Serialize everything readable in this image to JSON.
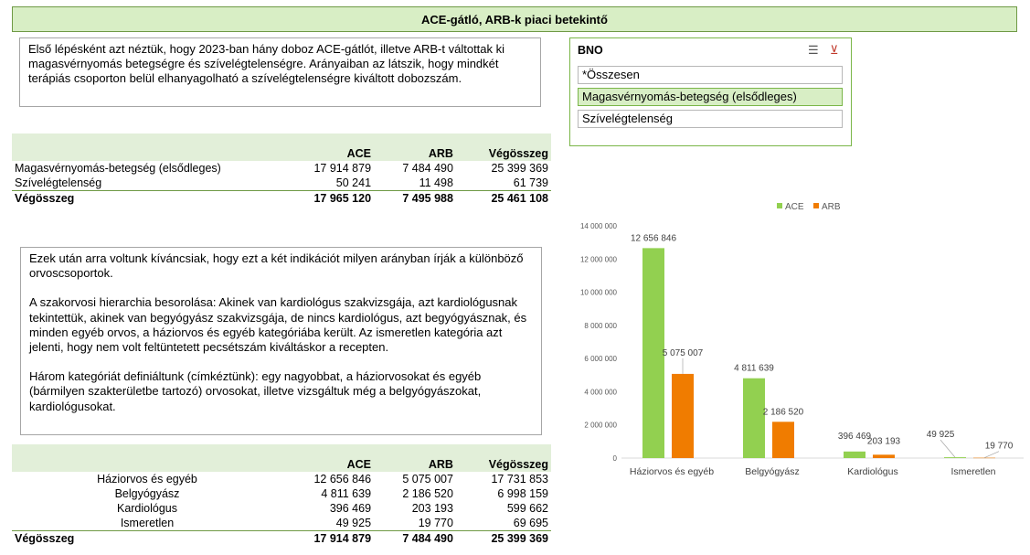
{
  "title": "ACE-gátló, ARB-k piaci betekintő",
  "note1": "Első lépésként azt néztük, hogy 2023-ban hány doboz ACE-gátlót, illetve ARB-t váltottak ki magasvérnyomás betegségre és szívelégtelenségre. Arányaiban az látszik, hogy mindkét terápiás csoporton belül elhanyagolható a szívelégtelenségre kiváltott dobozszám.",
  "note2": {
    "p1": "Ezek után arra voltunk kíváncsiak, hogy ezt a két indikációt milyen arányban írják a különböző orvoscsoportok.",
    "p2": "A szakorvosi hierarchia besorolása: Akinek van kardiológus szakvizsgája, azt kardiológusnak tekintettük, akinek van begyógyász szakvizsgája, de nincs kardiológus, azt begyógyásznak, és minden egyéb orvos, a háziorvos és egyéb kategóriába került. Az ismeretlen kategória azt jelenti, hogy nem volt feltüntetett pecsétszám kiváltáskor a recepten.",
    "p3": "Három kategóriát definiáltunk (címkéztünk): egy nagyobbat, a háziorvosokat és egyéb (bármilyen szakterületbe tartozó) orvosokat, illetve vizsgáltuk még a belgyógyászokat, kardiológusokat."
  },
  "table1": {
    "headers": [
      "",
      "ACE",
      "ARB",
      "Végösszeg"
    ],
    "rows": [
      [
        "Magasvérnyomás-betegség (elsődleges)",
        "17 914 879",
        "7 484 490",
        "25 399 369"
      ],
      [
        "Szívelégtelenség",
        "50 241",
        "11 498",
        "61 739"
      ]
    ],
    "total": [
      "Végösszeg",
      "17 965 120",
      "7 495 988",
      "25 461 108"
    ]
  },
  "table2": {
    "headers": [
      "",
      "ACE",
      "ARB",
      "Végösszeg"
    ],
    "rows": [
      [
        "Háziorvos és egyéb",
        "12 656 846",
        "5 075 007",
        "17 731 853"
      ],
      [
        "Belgyógyász",
        "4 811 639",
        "2 186 520",
        "6 998 159"
      ],
      [
        "Kardiológus",
        "396 469",
        "203 193",
        "599 662"
      ],
      [
        "Ismeretlen",
        "49 925",
        "19 770",
        "69 695"
      ]
    ],
    "total": [
      "Végösszeg",
      "17 914 879",
      "7 484 490",
      "25 399 369"
    ]
  },
  "slicer": {
    "title": "BNO",
    "items": [
      "*Összesen",
      "Magasvérnyomás-betegség (elsődleges)",
      "Szívelégtelenség"
    ],
    "selected": "Magasvérnyomás-betegség (elsődleges)",
    "icons": [
      "multi-select-icon",
      "clear-filter-icon"
    ]
  },
  "chart_data": {
    "type": "bar",
    "categories": [
      "Háziorvos és egyéb",
      "Belgyógyász",
      "Kardiológus",
      "Ismeretlen"
    ],
    "series": [
      {
        "name": "ACE",
        "values": [
          12656846,
          4811639,
          396469,
          49925
        ],
        "color": "#92d050",
        "labels": [
          "12 656 846",
          "4 811 639",
          "396 469",
          "49 925"
        ]
      },
      {
        "name": "ARB",
        "values": [
          5075007,
          2186520,
          203193,
          19770
        ],
        "color": "#f07c00",
        "labels": [
          "5 075 007",
          "2 186 520",
          "203 193",
          "19 770"
        ]
      }
    ],
    "ylim": [
      0,
      14000000
    ],
    "yticks": [
      "0",
      "2 000 000",
      "4 000 000",
      "6 000 000",
      "8 000 000",
      "10 000 000",
      "12 000 000",
      "14 000 000"
    ],
    "legend": "top",
    "grid": false
  }
}
